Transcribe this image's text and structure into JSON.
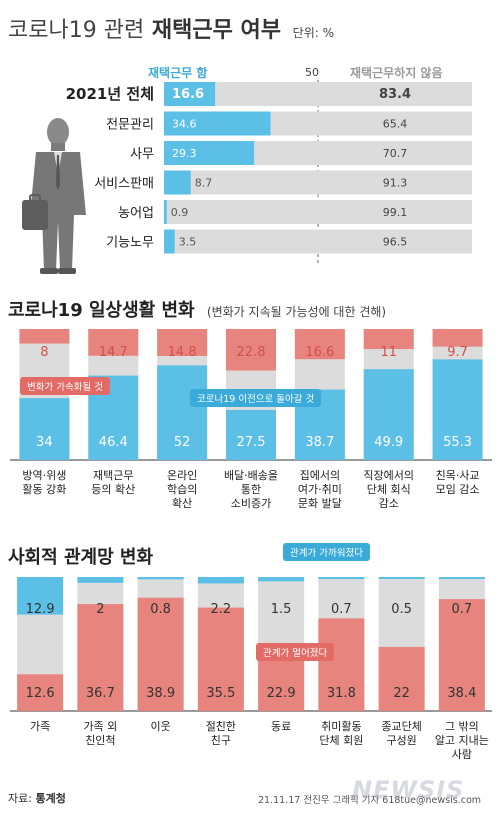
{
  "header": {
    "title_light": "코로나19 관련",
    "title_bold": "재택근무 여부",
    "unit": "단위: %"
  },
  "section2": {
    "title": "코로나19 일상생활 변화",
    "subtitle": "(변화가 지속될 가능성에 대한 견해)"
  },
  "section3": {
    "title": "사회적 관계망 변화"
  },
  "footer": {
    "source_label": "자료:",
    "source_name": "통계청",
    "credit": "21.11.17 전진우 그래픽 기자 618tue@newsis.com"
  },
  "watermark": "NEWSIS",
  "colors": {
    "blue": "#5bbfe6",
    "red": "#e8847e",
    "gray": "#dcdcdc",
    "dark": "#333333"
  },
  "chart_data": [
    {
      "type": "bar",
      "orientation": "horizontal",
      "stacked": true,
      "legend": {
        "a": "재택근무 함",
        "b": "재택근무하지 않음",
        "mid": "50"
      },
      "categories": [
        "2021년 전체",
        "전문관리",
        "사무",
        "서비스판매",
        "농어업",
        "기능노무"
      ],
      "series": [
        {
          "name": "재택근무 함",
          "values": [
            16.6,
            34.6,
            29.3,
            8.7,
            0.9,
            3.5
          ]
        },
        {
          "name": "재택근무하지 않음",
          "values": [
            83.4,
            65.4,
            70.7,
            91.3,
            99.1,
            96.5
          ]
        }
      ],
      "labels_a": [
        "16.6",
        "34.6",
        "29.3",
        "8.7",
        "0.9",
        "3.5"
      ],
      "labels_b": [
        "83.4",
        "65.4",
        "70.7",
        "91.3",
        "99.1",
        "96.5"
      ],
      "xlim": [
        0,
        100
      ]
    },
    {
      "type": "bar",
      "orientation": "vertical",
      "stacked": true,
      "categories": [
        [
          "방역·위생",
          "활동 강화"
        ],
        [
          "재택근무",
          "등의 확산"
        ],
        [
          "온라인",
          "학습의",
          "확산"
        ],
        [
          "배달·배송을",
          "통한",
          "소비증가"
        ],
        [
          "집에서의",
          "여가·취미",
          "문화 발달"
        ],
        [
          "직장에서의",
          "단체 회식",
          "감소"
        ],
        [
          "친목·사교",
          "모임 감소"
        ]
      ],
      "series": [
        {
          "name": "변화가 가속화될 것",
          "values": [
            8,
            14.7,
            14.8,
            22.8,
            16.6,
            11,
            9.7
          ]
        },
        {
          "name": "코로나19 이전으로 돌아갈 것",
          "values": [
            34,
            46.4,
            52,
            27.5,
            38.7,
            49.9,
            55.3
          ]
        }
      ],
      "labels_top": [
        "8",
        "14.7",
        "14.8",
        "22.8",
        "16.6",
        "11",
        "9.7"
      ],
      "labels_bottom": [
        "34",
        "46.4",
        "52",
        "27.5",
        "38.7",
        "49.9",
        "55.3"
      ],
      "callouts": {
        "top": "변화가 가속화될 것",
        "bottom": "코로나19 이전으로 돌아갈 것"
      },
      "ylim": [
        0,
        100
      ]
    },
    {
      "type": "bar",
      "orientation": "vertical",
      "stacked": true,
      "categories": [
        [
          "가족"
        ],
        [
          "가족 외",
          "친인척"
        ],
        [
          "이웃"
        ],
        [
          "절친한",
          "친구"
        ],
        [
          "동료"
        ],
        [
          "취미활동",
          "단체 회원"
        ],
        [
          "종교단체",
          "구성원"
        ],
        [
          "그 밖의",
          "알고 지내는",
          "사람"
        ]
      ],
      "series": [
        {
          "name": "관계가 가까워졌다",
          "values": [
            12.9,
            2,
            0.8,
            2.2,
            1.5,
            0.7,
            0.5,
            0.7
          ]
        },
        {
          "name": "관계가 멀어졌다",
          "values": [
            12.6,
            36.7,
            38.9,
            35.5,
            22.9,
            31.8,
            22,
            38.4
          ]
        }
      ],
      "labels_top": [
        "12.9",
        "2",
        "0.8",
        "2.2",
        "1.5",
        "0.7",
        "0.5",
        "0.7"
      ],
      "labels_bottom": [
        "12.6",
        "36.7",
        "38.9",
        "35.5",
        "22.9",
        "31.8",
        "22",
        "38.4"
      ],
      "callouts": {
        "top": "관계가 가까워졌다",
        "bottom": "관계가 멀어졌다"
      },
      "ylim": [
        0,
        100
      ]
    }
  ]
}
